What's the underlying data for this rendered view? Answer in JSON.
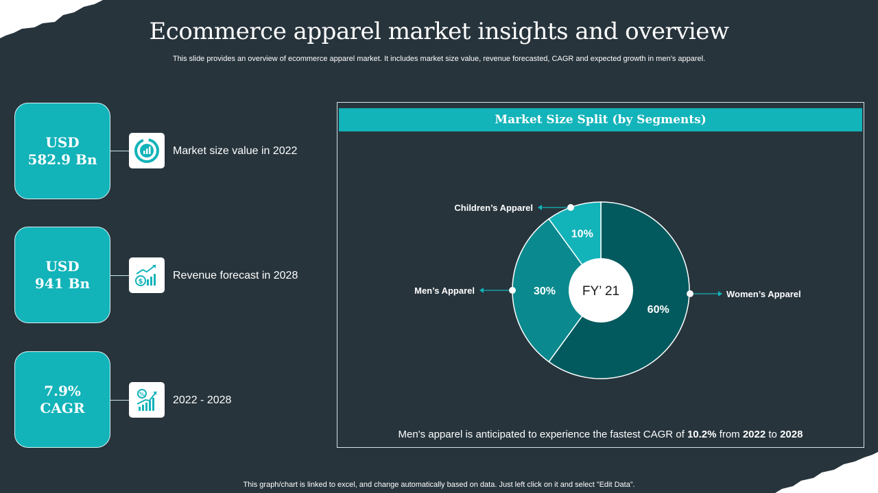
{
  "slide": {
    "title": "Ecommerce apparel market insights and overview",
    "subtitle": "This slide provides an overview of ecommerce apparel market. It includes market size value, revenue forecasted, CAGR and expected growth in men’s apparel.",
    "footer": "This graph/chart is linked to excel,  and change automatically based on data. Just left click on it and select ”Edit Data”."
  },
  "stats": [
    {
      "value": "USD\n582.9 Bn",
      "label": "Market size value  in 2022",
      "icon": "money-chart-icon"
    },
    {
      "value": "USD\n941 Bn",
      "label": "Revenue forecast in 2028",
      "icon": "dollar-growth-icon"
    },
    {
      "value": "7.9%\nCAGR",
      "label": "2022 - 2028",
      "icon": "percent-growth-icon"
    }
  ],
  "panel": {
    "title": "Market Size Split (by Segments)",
    "note_prefix": "Men's apparel is anticipated to experience the fastest CAGR of ",
    "note_cagr": "10.2%",
    "note_mid": " from ",
    "note_year1": "2022",
    "note_to": " to ",
    "note_year2": "2028"
  },
  "chart_data": {
    "type": "pie",
    "title": "Market Size Split (by Segments)",
    "center_label": "FY’ 21",
    "categories": [
      "Women’s Apparel",
      "Men’s Apparel",
      "Children’s Apparel"
    ],
    "values": [
      60,
      30,
      10
    ],
    "value_labels": [
      "60%",
      "30%",
      "10%"
    ],
    "colors": [
      "#035a5e",
      "#0a8a8e",
      "#12b3b9"
    ]
  },
  "colors": {
    "background": "#27343c",
    "accent": "#12b3b9"
  }
}
